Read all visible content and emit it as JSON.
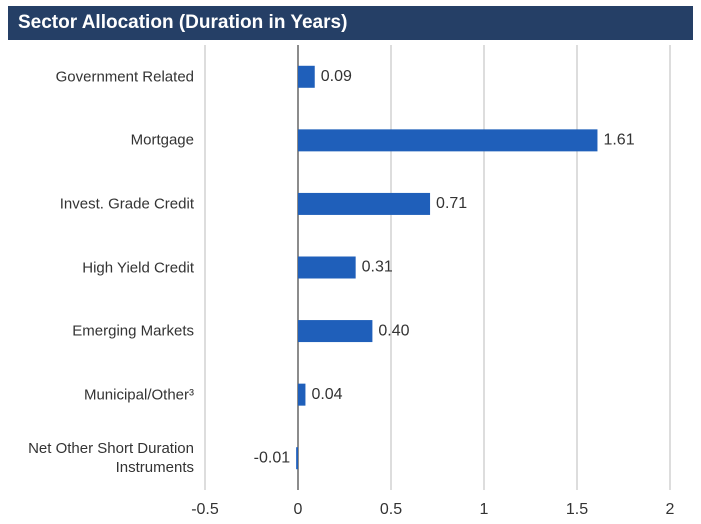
{
  "chart_data": {
    "type": "bar",
    "orientation": "horizontal",
    "title": "Sector Allocation (Duration in Years)",
    "categories": [
      "Government Related",
      "Mortgage",
      "Invest. Grade Credit",
      "High Yield Credit",
      "Emerging Markets",
      "Municipal/Other³",
      "Net Other Short Duration Instruments"
    ],
    "values": [
      0.09,
      1.61,
      0.71,
      0.31,
      0.4,
      0.04,
      -0.01
    ],
    "value_labels": [
      "0.09",
      "1.61",
      "0.71",
      "0.31",
      "0.40",
      "0.04",
      "-0.01"
    ],
    "color": "#1f5fba",
    "xlim": [
      -0.5,
      2
    ],
    "xticks": [
      -0.5,
      0,
      0.5,
      1,
      1.5,
      2
    ],
    "grid": true
  }
}
